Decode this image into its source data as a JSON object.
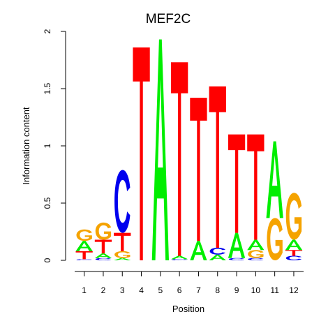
{
  "chart_data": {
    "type": "sequence-logo",
    "title": "MEF2C",
    "xlabel": "Position",
    "ylabel": "Information content",
    "ylim": [
      0,
      2
    ],
    "yticks": [
      0,
      0.5,
      1,
      1.5,
      2
    ],
    "ytick_labels": [
      "0",
      "0.5",
      "1",
      "1.5",
      "2"
    ],
    "positions": [
      "1",
      "2",
      "3",
      "4",
      "5",
      "6",
      "7",
      "8",
      "9",
      "10",
      "11",
      "12"
    ],
    "letter_colors": {
      "A": "#00ee00",
      "C": "#0000ee",
      "G": "#f5a300",
      "T": "#ff0000"
    },
    "columns": [
      [
        {
          "letter": "C",
          "height": 0.01
        },
        {
          "letter": "T",
          "height": 0.07
        },
        {
          "letter": "A",
          "height": 0.09
        },
        {
          "letter": "G",
          "height": 0.1
        }
      ],
      [
        {
          "letter": "C",
          "height": 0.02
        },
        {
          "letter": "A",
          "height": 0.04
        },
        {
          "letter": "T",
          "height": 0.12
        },
        {
          "letter": "G",
          "height": 0.15
        }
      ],
      [
        {
          "letter": "A",
          "height": 0.02
        },
        {
          "letter": "G",
          "height": 0.06
        },
        {
          "letter": "T",
          "height": 0.16
        },
        {
          "letter": "C",
          "height": 0.55
        }
      ],
      [
        {
          "letter": "T",
          "height": 1.86
        }
      ],
      [
        {
          "letter": "A",
          "height": 1.93
        }
      ],
      [
        {
          "letter": "C",
          "height": 0.01
        },
        {
          "letter": "A",
          "height": 0.03
        },
        {
          "letter": "T",
          "height": 1.69
        }
      ],
      [
        {
          "letter": "A",
          "height": 0.17
        },
        {
          "letter": "T",
          "height": 1.25
        }
      ],
      [
        {
          "letter": "A",
          "height": 0.05
        },
        {
          "letter": "C",
          "height": 0.06
        },
        {
          "letter": "T",
          "height": 1.41
        }
      ],
      [
        {
          "letter": "C",
          "height": 0.02
        },
        {
          "letter": "A",
          "height": 0.22
        },
        {
          "letter": "T",
          "height": 0.86
        }
      ],
      [
        {
          "letter": "C",
          "height": 0.02
        },
        {
          "letter": "G",
          "height": 0.07
        },
        {
          "letter": "A",
          "height": 0.09
        },
        {
          "letter": "T",
          "height": 0.92
        }
      ],
      [
        {
          "letter": "G",
          "height": 0.37
        },
        {
          "letter": "A",
          "height": 0.67
        }
      ],
      [
        {
          "letter": "C",
          "height": 0.04
        },
        {
          "letter": "T",
          "height": 0.05
        },
        {
          "letter": "A",
          "height": 0.09
        },
        {
          "letter": "G",
          "height": 0.41
        }
      ]
    ]
  }
}
